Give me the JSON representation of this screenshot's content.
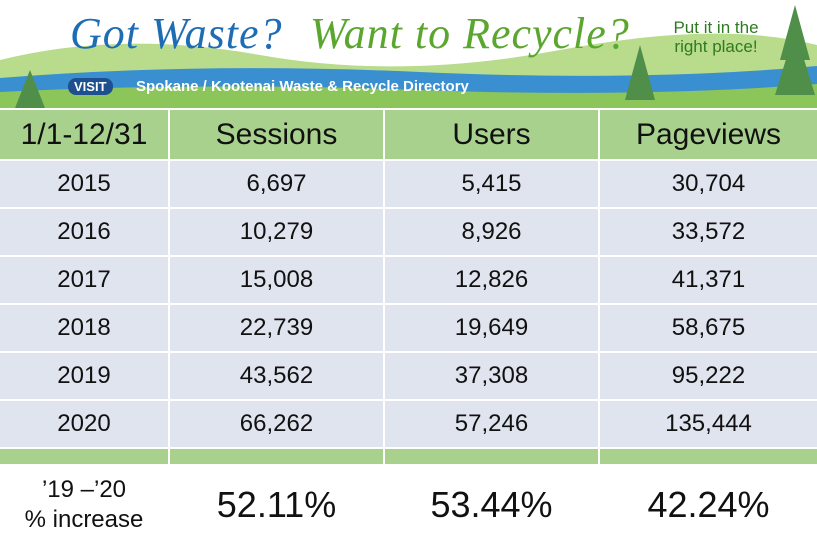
{
  "banner": {
    "title_part1": "Got Waste?",
    "title_part2": "Want to Recycle?",
    "tagline": "Put it in the right place!",
    "visit": "VISIT",
    "directory": "Spokane / Kootenai Waste & Recycle Directory"
  },
  "table": {
    "header": [
      "1/1-12/31",
      "Sessions",
      "Users",
      "Pageviews"
    ],
    "rows": [
      [
        "2015",
        "6,697",
        "5,415",
        "30,704"
      ],
      [
        "2016",
        "10,279",
        "8,926",
        "33,572"
      ],
      [
        "2017",
        "15,008",
        "12,826",
        "41,371"
      ],
      [
        "2018",
        "22,739",
        "19,649",
        "58,675"
      ],
      [
        "2019",
        "43,562",
        "37,308",
        "95,222"
      ],
      [
        "2020",
        "66,262",
        "57,246",
        "135,444"
      ]
    ],
    "footer": {
      "label_line1": "’19 –’20",
      "label_line2": "% increase",
      "values": [
        "52.11%",
        "53.44%",
        "42.24%"
      ]
    }
  }
}
